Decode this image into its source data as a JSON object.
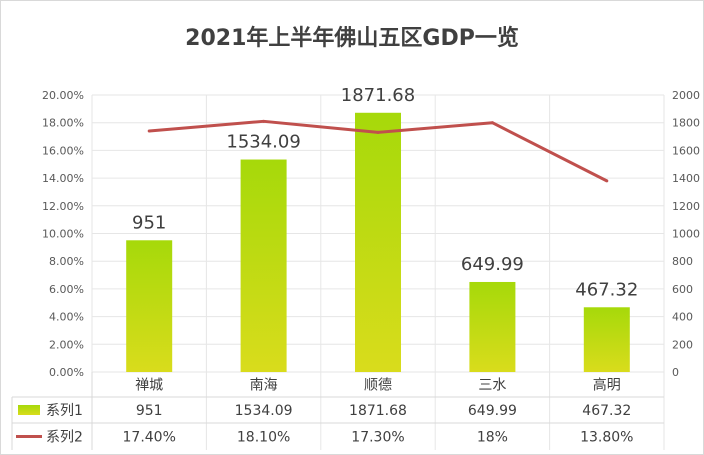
{
  "chart_data": {
    "type": "bar",
    "title": "2021年上半年佛山五区GDP一览",
    "categories": [
      "禅城",
      "南海",
      "顺德",
      "三水",
      "高明"
    ],
    "series": [
      {
        "name": "系列1",
        "type": "bar",
        "axis": "right",
        "values": [
          951,
          1534.09,
          1871.68,
          649.99,
          467.32
        ],
        "labels": [
          "951",
          "1534.09",
          "1871.68",
          "649.99",
          "467.32"
        ],
        "color": "#a8d80a"
      },
      {
        "name": "系列2",
        "type": "line",
        "axis": "left",
        "values": [
          0.174,
          0.181,
          0.173,
          0.18,
          0.138
        ],
        "labels": [
          "17.40%",
          "18.10%",
          "17.30%",
          "18%",
          "13.80%"
        ],
        "color": "#c0504d"
      }
    ],
    "left_axis": {
      "min": 0,
      "max": 0.2,
      "step": 0.02,
      "ticks": [
        "0.00%",
        "2.00%",
        "4.00%",
        "6.00%",
        "8.00%",
        "10.00%",
        "12.00%",
        "14.00%",
        "16.00%",
        "18.00%",
        "20.00%"
      ]
    },
    "right_axis": {
      "min": 0,
      "max": 2000,
      "step": 200,
      "ticks": [
        "0",
        "200",
        "400",
        "600",
        "800",
        "1000",
        "1200",
        "1400",
        "1600",
        "1800",
        "2000"
      ]
    },
    "grid": true,
    "legend": "data-table"
  }
}
